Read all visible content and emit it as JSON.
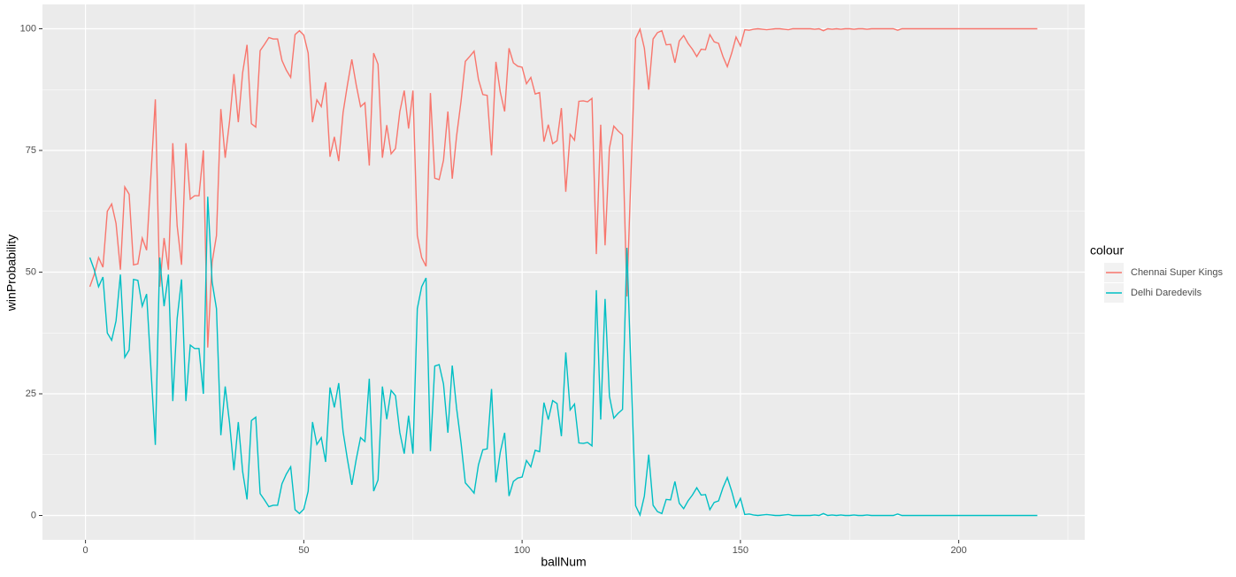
{
  "chart_data": {
    "type": "line",
    "x_label": "ballNum",
    "y_label": "winProbability",
    "legend_title": "colour",
    "legend_position": "right",
    "grid": true,
    "xlim": [
      -9.85,
      228.85
    ],
    "ylim": [
      -5,
      105
    ],
    "xticks": [
      0,
      50,
      100,
      150,
      200
    ],
    "yticks": [
      0,
      25,
      50,
      75,
      100
    ],
    "x": [
      1,
      2,
      3,
      4,
      5,
      6,
      7,
      8,
      9,
      10,
      11,
      12,
      13,
      14,
      15,
      16,
      17,
      18,
      19,
      20,
      21,
      22,
      23,
      24,
      25,
      26,
      27,
      28,
      29,
      30,
      31,
      32,
      33,
      34,
      35,
      36,
      37,
      38,
      39,
      40,
      41,
      42,
      43,
      44,
      45,
      46,
      47,
      48,
      49,
      50,
      51,
      52,
      53,
      54,
      55,
      56,
      57,
      58,
      59,
      60,
      61,
      62,
      63,
      64,
      65,
      66,
      67,
      68,
      69,
      70,
      71,
      72,
      73,
      74,
      75,
      76,
      77,
      78,
      79,
      80,
      81,
      82,
      83,
      84,
      85,
      86,
      87,
      88,
      89,
      90,
      91,
      92,
      93,
      94,
      95,
      96,
      97,
      98,
      99,
      100,
      101,
      102,
      103,
      104,
      105,
      106,
      107,
      108,
      109,
      110,
      111,
      112,
      113,
      114,
      115,
      116,
      117,
      118,
      119,
      120,
      121,
      122,
      123,
      124,
      125,
      126,
      127,
      128,
      129,
      130,
      131,
      132,
      133,
      134,
      135,
      136,
      137,
      138,
      139,
      140,
      141,
      142,
      143,
      144,
      145,
      146,
      147,
      148,
      149,
      150,
      151,
      152,
      153,
      154,
      155,
      156,
      157,
      158,
      159,
      160,
      161,
      162,
      163,
      164,
      165,
      166,
      167,
      168,
      169,
      170,
      171,
      172,
      173,
      174,
      175,
      176,
      177,
      178,
      179,
      180,
      181,
      182,
      183,
      184,
      185,
      186,
      187,
      188,
      189,
      190,
      191,
      192,
      193,
      194,
      195,
      196,
      197,
      198,
      199,
      200,
      201,
      202,
      203,
      204,
      205,
      206,
      207,
      208,
      209,
      210,
      211,
      212,
      213,
      214,
      215,
      216,
      217,
      218
    ],
    "series": [
      {
        "name": "Chennai Super Kings",
        "color": "#F8766D",
        "values": [
          47,
          49.5,
          53,
          51,
          62.5,
          64,
          60,
          50.5,
          67.5,
          66,
          51.5,
          51.7,
          57,
          54.5,
          70,
          85.5,
          47,
          57,
          50.5,
          76.5,
          59.5,
          51.5,
          76.5,
          65,
          65.7,
          65.7,
          75,
          34.5,
          52,
          57.5,
          83.5,
          73.5,
          81,
          90.7,
          80.8,
          91,
          96.7,
          80.5,
          79.8,
          95.5,
          96.8,
          98.2,
          97.9,
          97.9,
          93.5,
          91.5,
          90,
          98.8,
          99.6,
          98.7,
          95,
          80.8,
          85.4,
          84,
          89,
          73.7,
          77.8,
          72.8,
          82.8,
          88.5,
          93.7,
          88.5,
          84,
          84.8,
          71.9,
          95,
          92.7,
          73.5,
          80.2,
          74.3,
          75.4,
          83,
          87.3,
          79.5,
          87.3,
          57.5,
          53,
          51.2,
          86.8,
          69.3,
          69,
          73,
          83,
          69.2,
          78,
          85,
          93.3,
          94.3,
          95.4,
          89.6,
          86.5,
          86.3,
          74,
          93.2,
          87,
          83,
          96,
          93,
          92.3,
          92.1,
          88.7,
          90,
          86.6,
          86.9,
          76.8,
          80.3,
          76.4,
          77,
          83.7,
          66.5,
          78.3,
          77.1,
          85.1,
          85.2,
          85,
          85.7,
          53.7,
          80.3,
          55.5,
          75.5,
          80,
          79,
          78.2,
          45,
          72,
          98,
          99.9,
          96,
          87.5,
          97.9,
          99.2,
          99.6,
          96.7,
          96.8,
          93,
          97.5,
          98.6,
          97,
          95.8,
          94.3,
          95.8,
          95.7,
          98.8,
          97.3,
          97,
          94.3,
          92.2,
          95,
          98.3,
          96.5,
          99.8,
          99.7,
          99.9,
          100,
          99.9,
          99.8,
          99.9,
          100,
          100,
          99.9,
          99.8,
          100,
          100,
          100,
          100,
          100,
          99.9,
          100,
          99.6,
          100,
          99.9,
          100,
          99.9,
          100,
          100,
          99.9,
          100,
          100,
          99.9,
          100,
          100,
          100,
          100,
          100,
          100,
          99.7,
          100,
          100,
          100,
          100,
          100,
          100,
          100,
          100,
          100,
          100,
          100,
          100,
          100,
          100,
          100,
          100,
          100,
          100,
          100,
          100,
          100,
          100,
          100,
          100,
          100,
          100,
          100,
          100,
          100,
          100,
          100,
          100
        ]
      },
      {
        "name": "Delhi Daredevils",
        "color": "#00BFC4",
        "values": [
          53,
          50.5,
          47,
          49,
          37.5,
          36,
          40,
          49.5,
          32.5,
          34,
          48.5,
          48.3,
          43,
          45.5,
          30,
          14.5,
          53,
          43,
          49.5,
          23.5,
          40.5,
          48.5,
          23.5,
          35,
          34.3,
          34.3,
          25,
          65.5,
          48,
          42.5,
          16.5,
          26.5,
          19,
          9.3,
          19.2,
          9,
          3.3,
          19.5,
          20.2,
          4.5,
          3.2,
          1.8,
          2.1,
          2.1,
          6.5,
          8.5,
          10,
          1.2,
          0.4,
          1.3,
          5,
          19.2,
          14.6,
          16,
          11,
          26.3,
          22.2,
          27.2,
          17.2,
          11.5,
          6.3,
          11.5,
          16,
          15.2,
          28.1,
          5,
          7.3,
          26.5,
          19.8,
          25.7,
          24.6,
          17,
          12.7,
          20.5,
          12.7,
          42.5,
          47,
          48.8,
          13.2,
          30.7,
          31,
          27,
          17,
          30.8,
          22,
          15,
          6.7,
          5.7,
          4.6,
          10.4,
          13.5,
          13.7,
          26,
          6.8,
          13,
          17,
          4,
          7,
          7.7,
          7.9,
          11.3,
          10,
          13.4,
          13.1,
          23.2,
          19.7,
          23.6,
          23,
          16.3,
          33.5,
          21.7,
          22.9,
          14.9,
          14.8,
          15,
          14.3,
          46.3,
          19.7,
          44.5,
          24.5,
          20,
          21,
          21.8,
          55,
          28,
          2,
          0.1,
          4,
          12.5,
          2.1,
          0.8,
          0.4,
          3.3,
          3.2,
          7,
          2.5,
          1.4,
          3,
          4.2,
          5.7,
          4.2,
          4.3,
          1.2,
          2.7,
          3,
          5.7,
          7.8,
          5,
          1.7,
          3.5,
          0.2,
          0.3,
          0.1,
          0,
          0.1,
          0.2,
          0.1,
          0,
          0,
          0.1,
          0.2,
          0,
          0,
          0,
          0,
          0,
          0.1,
          0,
          0.4,
          0,
          0.1,
          0,
          0.1,
          0,
          0,
          0.1,
          0,
          0,
          0.1,
          0,
          0,
          0,
          0,
          0,
          0,
          0.3,
          0,
          0,
          0,
          0,
          0,
          0,
          0,
          0,
          0,
          0,
          0,
          0,
          0,
          0,
          0,
          0,
          0,
          0,
          0,
          0,
          0,
          0,
          0,
          0,
          0,
          0,
          0,
          0,
          0,
          0,
          0,
          0
        ]
      }
    ]
  }
}
